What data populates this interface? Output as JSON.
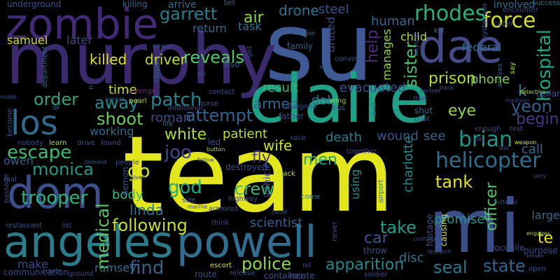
{
  "wordcloud": {
    "background": "#000000",
    "words": [
      {
        "text": "team",
        "color": "#e4e61d"
      },
      {
        "text": "su",
        "color": "#3f5a94"
      },
      {
        "text": "murphy",
        "color": "#3b2a6e"
      },
      {
        "text": "claire",
        "color": "#1fa187"
      },
      {
        "text": "mi",
        "color": "#3c4e8a"
      },
      {
        "text": "powell",
        "color": "#2f6e8e"
      },
      {
        "text": "angeles",
        "color": "#2c7d8b"
      },
      {
        "text": "zombie",
        "color": "#432a78"
      },
      {
        "text": "dae",
        "color": "#444a86"
      },
      {
        "text": "dom",
        "color": "#3b4f8b"
      },
      {
        "text": "los",
        "color": "#30688e"
      },
      {
        "text": "helicopter",
        "color": "#2e6f8e"
      },
      {
        "text": "apparition",
        "color": "#24878e"
      },
      {
        "text": "reveals",
        "color": "#56c667"
      },
      {
        "text": "attempt",
        "color": "#34638d"
      },
      {
        "text": "medical",
        "color": "#5cc863"
      },
      {
        "text": "police",
        "color": "#8fd744"
      },
      {
        "text": "force",
        "color": "#d6e21a"
      },
      {
        "text": "brian",
        "color": "#22958b"
      },
      {
        "text": "hospital",
        "color": "#20a486"
      },
      {
        "text": "prison",
        "color": "#b0dd2f"
      },
      {
        "text": "rhodes",
        "color": "#2ab07f"
      },
      {
        "text": "patch",
        "color": "#26838f"
      },
      {
        "text": "garrett",
        "color": "#287d8e"
      },
      {
        "text": "killed",
        "color": "#e2e418"
      },
      {
        "text": "driver",
        "color": "#c2df23"
      },
      {
        "text": "order",
        "color": "#2ea17f"
      },
      {
        "text": "away",
        "color": "#228b8d"
      },
      {
        "text": "shoot",
        "color": "#6ccd5a"
      },
      {
        "text": "white",
        "color": "#a8db34"
      },
      {
        "text": "escape",
        "color": "#3ebc74"
      },
      {
        "text": "monica",
        "color": "#1e9c89"
      },
      {
        "text": "trooper",
        "color": "#2cb17e"
      },
      {
        "text": "joo",
        "color": "#40478b"
      },
      {
        "text": "god",
        "color": "#23a983"
      },
      {
        "text": "crew",
        "color": "#37b878"
      },
      {
        "text": "take",
        "color": "#1fa088"
      },
      {
        "text": "seal",
        "color": "#2a788e"
      },
      {
        "text": "state",
        "color": "#31668e"
      },
      {
        "text": "find",
        "color": "#33638d"
      },
      {
        "text": "officer",
        "color": "#52c569"
      },
      {
        "text": "tank",
        "color": "#e5e419"
      },
      {
        "text": "air",
        "color": "#8bd646"
      },
      {
        "text": "drone",
        "color": "#2c738e"
      },
      {
        "text": "steel",
        "color": "#3a538b"
      },
      {
        "text": "human",
        "color": "#31688e"
      },
      {
        "text": "child",
        "color": "#b5de2b"
      },
      {
        "text": "federal",
        "color": "#2c718e"
      },
      {
        "text": "yeon",
        "color": "#34608d"
      },
      {
        "text": "begin",
        "color": "#443b84"
      },
      {
        "text": "call",
        "color": "#2e6d8e"
      },
      {
        "text": "sister",
        "color": "#48c16e"
      },
      {
        "text": "help",
        "color": "#4f2c7b"
      },
      {
        "text": "manages",
        "color": "#8bd646"
      },
      {
        "text": "fly",
        "color": "#453781"
      },
      {
        "text": "men",
        "color": "#1fa287"
      },
      {
        "text": "wife",
        "color": "#cae11f"
      },
      {
        "text": "death",
        "color": "#297b8e"
      },
      {
        "text": "wound",
        "color": "#3a548c"
      },
      {
        "text": "see",
        "color": "#31688e"
      },
      {
        "text": "go",
        "color": "#d8e219"
      },
      {
        "text": "body",
        "color": "#35b779"
      },
      {
        "text": "following",
        "color": "#c5e021"
      },
      {
        "text": "linda",
        "color": "#2c728e"
      },
      {
        "text": "ramsey",
        "color": "#2d708e"
      },
      {
        "text": "make",
        "color": "#3e4a89"
      },
      {
        "text": "charlotte",
        "color": "#24878e"
      },
      {
        "text": "promise",
        "color": "#1f958b"
      },
      {
        "text": "disc",
        "color": "#2e6e8e"
      },
      {
        "text": "car",
        "color": "#39558c"
      },
      {
        "text": "using",
        "color": "#238a8d"
      },
      {
        "text": "scientist",
        "color": "#33638d"
      },
      {
        "text": "patient",
        "color": "#c2df23"
      },
      {
        "text": "time",
        "color": "#c5e021"
      },
      {
        "text": "roman",
        "color": "#3d4e8a"
      },
      {
        "text": "phone",
        "color": "#7ad151"
      },
      {
        "text": "eye",
        "color": "#8bd646"
      },
      {
        "text": "k",
        "color": "#2a778e"
      },
      {
        "text": "te",
        "color": "#e7e419"
      },
      {
        "text": "samuel",
        "color": "#dde318"
      },
      {
        "text": "later",
        "color": "#3e4989"
      },
      {
        "text": "return",
        "color": "#31688e"
      },
      {
        "text": "task",
        "color": "#2d718e"
      },
      {
        "text": "result",
        "color": "#35b779"
      },
      {
        "text": "evacuated",
        "color": "#3b528b"
      },
      {
        "text": "doll",
        "color": "#2a778e"
      },
      {
        "text": "working",
        "color": "#2f6c8e"
      },
      {
        "text": "owen",
        "color": "#34618d"
      },
      {
        "text": "united",
        "color": "#3e4a89"
      },
      {
        "text": "large",
        "color": "#306a8e"
      },
      {
        "text": "underground",
        "color": "#3b528b"
      },
      {
        "text": "killing",
        "color": "#31688e"
      },
      {
        "text": "arrive",
        "color": "#2f6c8e"
      },
      {
        "text": "tell",
        "color": "#31688e"
      },
      {
        "text": "involved",
        "color": "#2d708e"
      },
      {
        "text": "encounter",
        "color": "#3e4a89"
      },
      {
        "text": "success",
        "color": "#2a788e"
      },
      {
        "text": "sewer",
        "color": "#3b528b"
      },
      {
        "text": "cabin",
        "color": "#3e4a89"
      },
      {
        "text": "kill",
        "color": "#31688e"
      },
      {
        "text": "mission",
        "color": "#2d718e"
      },
      {
        "text": "family",
        "color": "#34618d"
      },
      {
        "text": "convoy",
        "color": "#3b528b"
      },
      {
        "text": "son",
        "color": "#2c718e"
      },
      {
        "text": "say",
        "color": "#b5de2b"
      },
      {
        "text": "saying",
        "color": "#3e4a89"
      },
      {
        "text": "mysterious",
        "color": "#3b528b"
      },
      {
        "text": "arrives",
        "color": "#34618d"
      },
      {
        "text": "department",
        "color": "#31688e"
      },
      {
        "text": "revenge",
        "color": "#7a2877"
      },
      {
        "text": "pearl",
        "color": "#c2df23"
      },
      {
        "text": "closet",
        "color": "#2d708e"
      },
      {
        "text": "bill",
        "color": "#39558c"
      },
      {
        "text": "get",
        "color": "#3e4a89"
      },
      {
        "text": "also",
        "color": "#3b528b"
      },
      {
        "text": "n",
        "color": "#31688e"
      },
      {
        "text": "inside",
        "color": "#3b528b"
      },
      {
        "text": "garage",
        "color": "#34618d"
      },
      {
        "text": "contact",
        "color": "#3e4a89"
      },
      {
        "text": "nurse",
        "color": "#3b528b"
      },
      {
        "text": "armed",
        "color": "#31688e"
      },
      {
        "text": "dr",
        "color": "#2e6e8e"
      },
      {
        "text": "additional",
        "color": "#3e4a89"
      },
      {
        "text": "become",
        "color": "#3b528b"
      },
      {
        "text": "assigned",
        "color": "#3e4a89"
      },
      {
        "text": "father",
        "color": "#3e4a89"
      },
      {
        "text": "wing",
        "color": "#7ad151"
      },
      {
        "text": "bus",
        "color": "#34618d"
      },
      {
        "text": "mac",
        "color": "#3e4a89"
      },
      {
        "text": "pilot",
        "color": "#3b528b"
      },
      {
        "text": "shut",
        "color": "#31688e"
      },
      {
        "text": "land",
        "color": "#2c718e"
      },
      {
        "text": "partner",
        "color": "#3b528b"
      },
      {
        "text": "track",
        "color": "#34618d"
      },
      {
        "text": "detective",
        "color": "#b5de2b"
      },
      {
        "text": "madison",
        "color": "#3e4a89"
      },
      {
        "text": "dollar",
        "color": "#3b528b"
      },
      {
        "text": "life",
        "color": "#31688e"
      },
      {
        "text": "led",
        "color": "#3e4a89"
      },
      {
        "text": "race",
        "color": "#3b528b"
      },
      {
        "text": "enough",
        "color": "#3e4a89"
      },
      {
        "text": "rest",
        "color": "#3b528b"
      },
      {
        "text": "weapon",
        "color": "#cae11f"
      },
      {
        "text": "nobody",
        "color": "#3e4a89"
      },
      {
        "text": "learn",
        "color": "#a8db34"
      },
      {
        "text": "drive",
        "color": "#3b528b"
      },
      {
        "text": "found",
        "color": "#3e4a89"
      },
      {
        "text": "button",
        "color": "#a8db34"
      },
      {
        "text": "together",
        "color": "#3e4a89"
      },
      {
        "text": "day",
        "color": "#3b528b"
      },
      {
        "text": "leaf",
        "color": "#3e4a89"
      },
      {
        "text": "demand",
        "color": "#3b528b"
      },
      {
        "text": "people",
        "color": "#3e4a89"
      },
      {
        "text": "fellow",
        "color": "#3b528b"
      },
      {
        "text": "destroyed",
        "color": "#3e4a89"
      },
      {
        "text": "back",
        "color": "#c2df23"
      },
      {
        "text": "real",
        "color": "#3b528b"
      },
      {
        "text": "given",
        "color": "#3e4a89"
      },
      {
        "text": "demon",
        "color": "#3b528b"
      },
      {
        "text": "passage",
        "color": "#3e4a89"
      },
      {
        "text": "come",
        "color": "#2c718e"
      },
      {
        "text": "butterfly",
        "color": "#3b528b"
      },
      {
        "text": "larry",
        "color": "#3e4a89"
      },
      {
        "text": "highway",
        "color": "#3e4a89"
      },
      {
        "text": "size",
        "color": "#3b528b"
      },
      {
        "text": "marine",
        "color": "#3e4a89"
      },
      {
        "text": "armored",
        "color": "#3b528b"
      },
      {
        "text": "vehicle",
        "color": "#3e4a89"
      },
      {
        "text": "belief",
        "color": "#3b528b"
      },
      {
        "text": "airport",
        "color": "#2c718e"
      },
      {
        "text": "think",
        "color": "#3e4a89"
      },
      {
        "text": "restaurant",
        "color": "#3b528b"
      },
      {
        "text": "list",
        "color": "#3e4a89"
      },
      {
        "text": "conference",
        "color": "#3e4a89"
      },
      {
        "text": "engages",
        "color": "#a8db34"
      },
      {
        "text": "never",
        "color": "#3b528b"
      },
      {
        "text": "throw",
        "color": "#3e4a89"
      },
      {
        "text": "footage",
        "color": "#3b528b"
      },
      {
        "text": "causing",
        "color": "#cae11f"
      },
      {
        "text": "research",
        "color": "#3b528b"
      },
      {
        "text": "crocodile",
        "color": "#3e4a89"
      },
      {
        "text": "purpose",
        "color": "#3e4a89"
      },
      {
        "text": "brown",
        "color": "#3b528b"
      },
      {
        "text": "escort",
        "color": "#d8e219"
      },
      {
        "text": "nil",
        "color": "#3e4a89"
      },
      {
        "text": "soldier",
        "color": "#3e4a89"
      },
      {
        "text": "open",
        "color": "#3b528b"
      },
      {
        "text": "communication",
        "color": "#3e4a89"
      },
      {
        "text": "cover",
        "color": "#3e4a89"
      },
      {
        "text": "ground",
        "color": "#3e4a89"
      },
      {
        "text": "route",
        "color": "#3b528b"
      },
      {
        "text": "release",
        "color": "#3e4a89"
      },
      {
        "text": "container",
        "color": "#3b528b"
      },
      {
        "text": "locate",
        "color": "#3e4a89"
      },
      {
        "text": "hide",
        "color": "#3b528b"
      },
      {
        "text": "however",
        "color": "#3e4a89"
      }
    ]
  }
}
